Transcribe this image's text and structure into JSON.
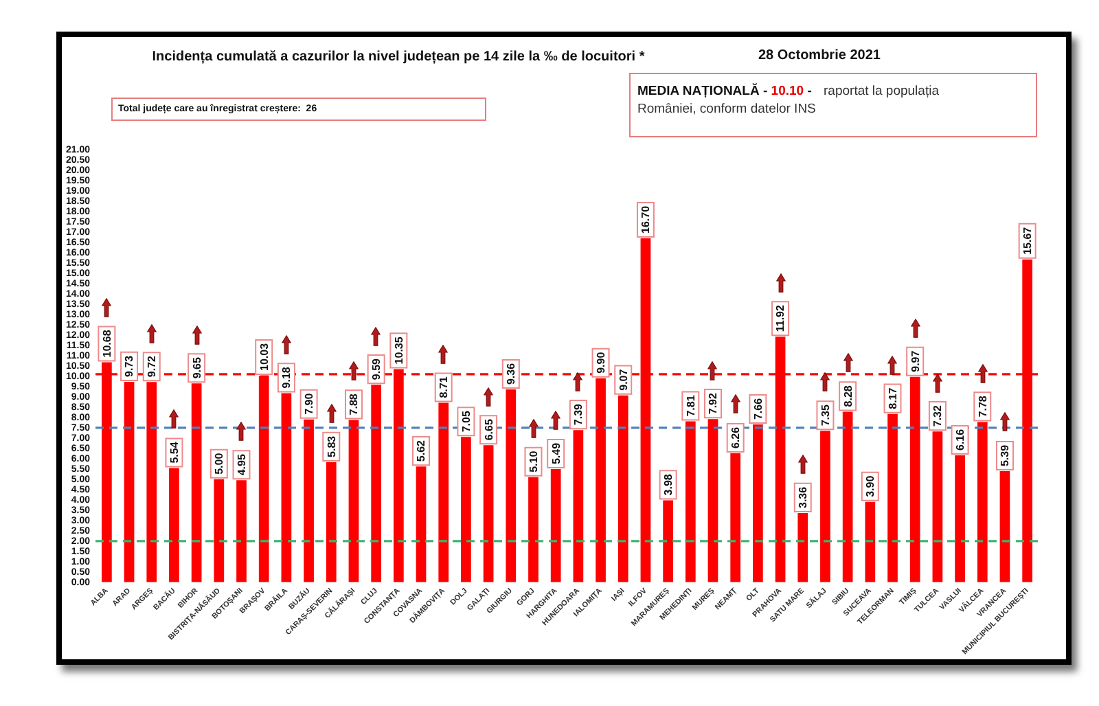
{
  "chart_data": {
    "type": "bar",
    "title": "Incidența cumulată a cazurilor la nivel județean pe 14 zile la ‰ de locuitori *",
    "categories": [
      "ALBA",
      "ARAD",
      "ARGEȘ",
      "BACĂU",
      "BIHOR",
      "BISTRIȚA-NĂSĂUD",
      "BOTOȘANI",
      "BRAȘOV",
      "BRĂILA",
      "BUZĂU",
      "CARAȘ-SEVERIN",
      "CĂLĂRAȘI",
      "CLUJ",
      "CONSTANȚA",
      "COVASNA",
      "DÂMBOVIȚA",
      "DOLJ",
      "GALAȚI",
      "GIURGIU",
      "GORJ",
      "HARGHITA",
      "HUNEDOARA",
      "IALOMIȚA",
      "IAȘI",
      "ILFOV",
      "MARAMUREȘ",
      "MEHEDINȚI",
      "MUREȘ",
      "NEAMȚ",
      "OLT",
      "PRAHOVA",
      "SATU MARE",
      "SĂLAJ",
      "SIBIU",
      "SUCEAVA",
      "TELEORMAN",
      "TIMIȘ",
      "TULCEA",
      "VASLUI",
      "VÂLCEA",
      "VRANCEA",
      "MUNICIPIUL BUCUREȘTI"
    ],
    "values": [
      10.68,
      9.73,
      9.72,
      5.54,
      9.65,
      5.0,
      4.95,
      10.03,
      9.18,
      7.9,
      5.83,
      7.88,
      9.59,
      10.35,
      5.62,
      8.71,
      7.05,
      6.65,
      9.36,
      5.1,
      5.49,
      7.39,
      9.9,
      9.07,
      16.7,
      3.98,
      7.81,
      7.92,
      6.26,
      7.66,
      11.92,
      3.36,
      7.35,
      8.28,
      3.9,
      8.17,
      9.97,
      7.32,
      6.16,
      7.78,
      5.39,
      15.67
    ],
    "value_labels": [
      "10.68",
      "9.73",
      "9.72",
      "5.54",
      "9.65",
      "5.00",
      "4.95",
      "10.03",
      "9.18",
      "7.90",
      "5.83",
      "7.88",
      "9.59",
      "10.35",
      "5.62",
      "8.71",
      "7.05",
      "6.65",
      "9.36",
      "5.10",
      "5.49",
      "7.39",
      "9.90",
      "9.07",
      "16.70",
      "3.98",
      "7.81",
      "7.92",
      "6.26",
      "7.66",
      "11.92",
      "3.36",
      "7.35",
      "8.28",
      "3.90",
      "8.17",
      "9.97",
      "7.32",
      "6.16",
      "7.78",
      "5.39",
      "15.67"
    ],
    "color": "#ff0000",
    "ylim": [
      0,
      21
    ],
    "yticks": [
      {
        "value": 0,
        "label": "0.00"
      },
      {
        "value": 0.5,
        "label": "0.50"
      },
      {
        "value": 1,
        "label": "1.00"
      },
      {
        "value": 1.5,
        "label": "1.50"
      },
      {
        "value": 2,
        "label": "2.00"
      },
      {
        "value": 2.5,
        "label": "2.50"
      },
      {
        "value": 3,
        "label": "3.00"
      },
      {
        "value": 3.5,
        "label": "3.50"
      },
      {
        "value": 4,
        "label": "4.00"
      },
      {
        "value": 4.5,
        "label": "4.50"
      },
      {
        "value": 5,
        "label": "5.00"
      },
      {
        "value": 5.5,
        "label": "5.50"
      },
      {
        "value": 6,
        "label": "6.00"
      },
      {
        "value": 6.5,
        "label": "6.50"
      },
      {
        "value": 7,
        "label": "7.00"
      },
      {
        "value": 7.5,
        "label": "7.50"
      },
      {
        "value": 8,
        "label": "8.00"
      },
      {
        "value": 8.5,
        "label": "8.50"
      },
      {
        "value": 9,
        "label": "9.00"
      },
      {
        "value": 9.5,
        "label": "9.50"
      },
      {
        "value": 10,
        "label": "10.00"
      },
      {
        "value": 10.5,
        "label": "10.50"
      },
      {
        "value": 11,
        "label": "11.00"
      },
      {
        "value": 11.5,
        "label": "11.50"
      },
      {
        "value": 12,
        "label": "12.00"
      },
      {
        "value": 12.5,
        "label": "12.50"
      },
      {
        "value": 13,
        "label": "13.00"
      },
      {
        "value": 13.5,
        "label": "13.50"
      },
      {
        "value": 14,
        "label": "14.00"
      },
      {
        "value": 14.5,
        "label": "14.50"
      },
      {
        "value": 15,
        "label": "15.00"
      },
      {
        "value": 15.5,
        "label": "15.50"
      },
      {
        "value": 16,
        "label": "16.00"
      },
      {
        "value": 16.5,
        "label": "16.50"
      },
      {
        "value": 17,
        "label": "17.00"
      },
      {
        "value": 17.5,
        "label": "17.50"
      },
      {
        "value": 18,
        "label": "18.00"
      },
      {
        "value": 18.5,
        "label": "18.50"
      },
      {
        "value": 19,
        "label": "19.00"
      },
      {
        "value": 19.5,
        "label": "19.50"
      },
      {
        "value": 20,
        "label": "20.00"
      },
      {
        "value": 20.5,
        "label": "20.50"
      },
      {
        "value": 21,
        "label": "21.00"
      }
    ],
    "ref_lines": [
      {
        "axis": "y",
        "value": 10.1,
        "color": "#ff0000",
        "line_style": "dashed"
      },
      {
        "axis": "y",
        "value": 7.5,
        "color": "#4f81bd",
        "line_style": "dashed"
      },
      {
        "axis": "y",
        "value": 2.0,
        "color": "#3cb371",
        "line_style": "dashed"
      }
    ],
    "annotations": [
      "28 Octombrie 2021",
      "Total județe care au înregistrat creștere:  26",
      "MEDIA NAȚIONALĂ -",
      "10.10",
      "-",
      "raportat la populația",
      "României, conform datelor INS"
    ]
  }
}
